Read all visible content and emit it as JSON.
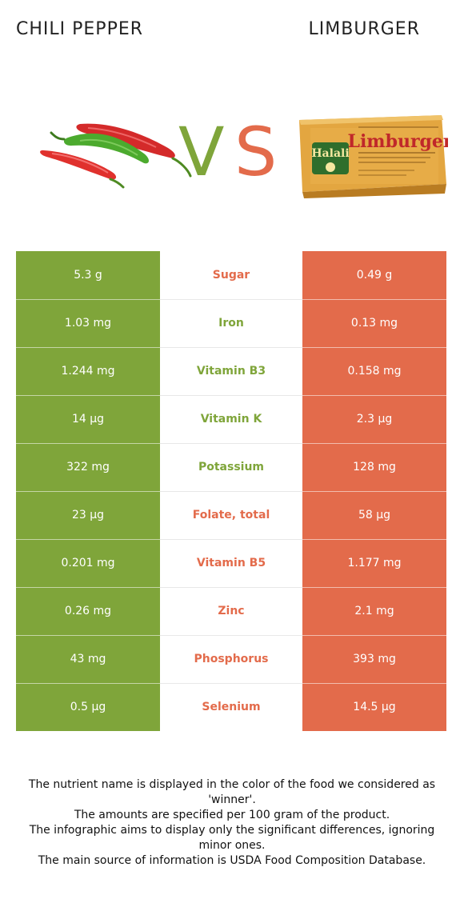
{
  "header": {
    "left_title": "CHILI PEPPER",
    "right_title": "LIMBURGER"
  },
  "images": {
    "left_food": "chili-pepper-image",
    "right_food": "limburger-cheese-package-image",
    "package_brand": "Halali",
    "package_product": "Limburger"
  },
  "vs": {
    "v": "V",
    "s": "S"
  },
  "colors": {
    "left": "#7fa53a",
    "right": "#e36b4b",
    "left_text": "#7fa53a",
    "right_text": "#e36b4b"
  },
  "rows": [
    {
      "nutrient": "Sugar",
      "left": "5.3 g",
      "right": "0.49 g",
      "winner": "right"
    },
    {
      "nutrient": "Iron",
      "left": "1.03 mg",
      "right": "0.13 mg",
      "winner": "left"
    },
    {
      "nutrient": "Vitamin B3",
      "left": "1.244 mg",
      "right": "0.158 mg",
      "winner": "left"
    },
    {
      "nutrient": "Vitamin K",
      "left": "14 µg",
      "right": "2.3 µg",
      "winner": "left"
    },
    {
      "nutrient": "Potassium",
      "left": "322 mg",
      "right": "128 mg",
      "winner": "left"
    },
    {
      "nutrient": "Folate, total",
      "left": "23 µg",
      "right": "58 µg",
      "winner": "right"
    },
    {
      "nutrient": "Vitamin B5",
      "left": "0.201 mg",
      "right": "1.177 mg",
      "winner": "right"
    },
    {
      "nutrient": "Zinc",
      "left": "0.26 mg",
      "right": "2.1 mg",
      "winner": "right"
    },
    {
      "nutrient": "Phosphorus",
      "left": "43 mg",
      "right": "393 mg",
      "winner": "right"
    },
    {
      "nutrient": "Selenium",
      "left": "0.5 µg",
      "right": "14.5 µg",
      "winner": "right"
    }
  ],
  "footer": {
    "line1": "The nutrient name is displayed in the color of the food we considered as 'winner'.",
    "line2": "The amounts are specified per 100 gram of the product.",
    "line3": "The infographic aims to display only the significant differences, ignoring minor ones.",
    "line4": "The main source of information is USDA Food Composition Database."
  }
}
